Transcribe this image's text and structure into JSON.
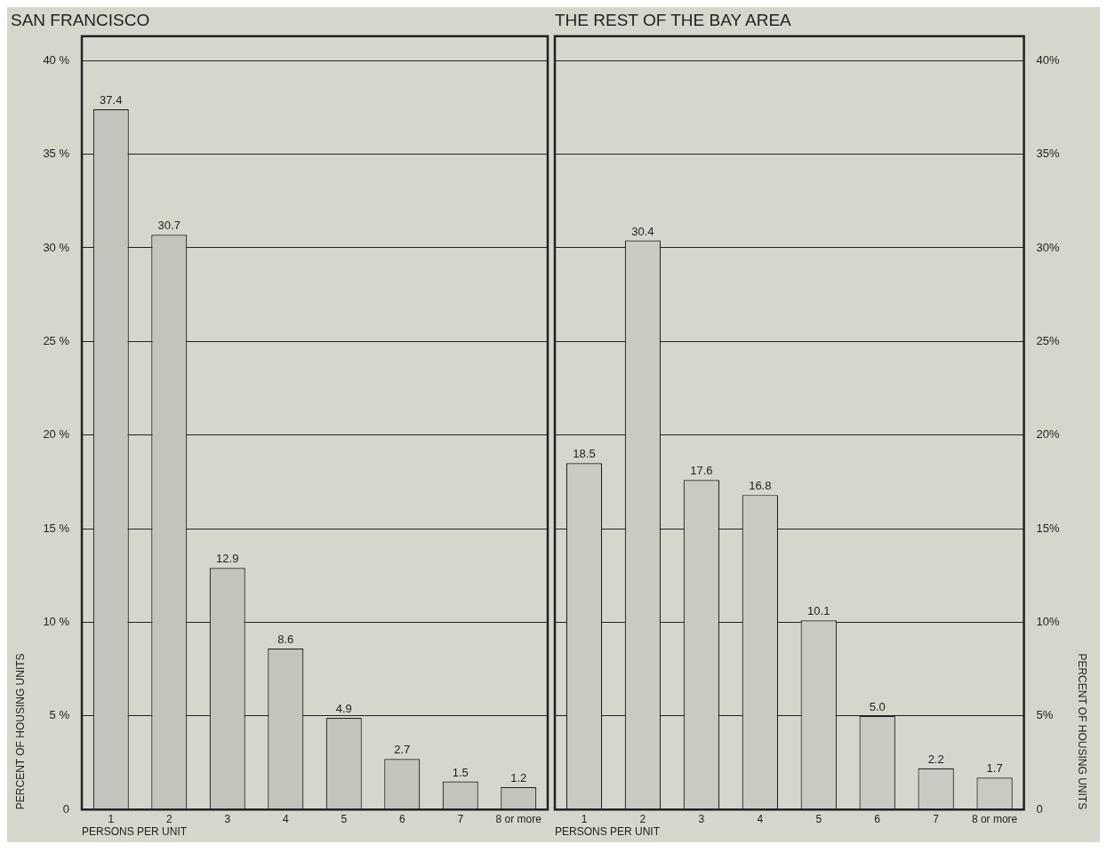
{
  "chart_data": [
    {
      "type": "bar",
      "title": "SAN FRANCISCO",
      "xlabel": "PERSONS PER UNIT",
      "ylabel": "PERCENT OF HOUSING UNITS",
      "categories": [
        "1",
        "2",
        "3",
        "4",
        "5",
        "6",
        "7",
        "8 or more"
      ],
      "series": [
        {
          "color": "#c4c4bc",
          "values": [
            37.4,
            30.7,
            12.9,
            8.6,
            4.9,
            2.7,
            1.5,
            1.2
          ],
          "value_labels": [
            "37.4",
            "30.7",
            "12.9",
            "8.6",
            "4.9",
            "2.7",
            "1.5",
            "1.2"
          ]
        }
      ],
      "ylim": [
        0,
        41.3
      ],
      "yticks": [
        0,
        {
          "value": 5,
          "label": "5 %"
        },
        {
          "value": 10,
          "label": "10 %"
        },
        {
          "value": 15,
          "label": "15 %"
        },
        {
          "value": 20,
          "label": "20 %"
        },
        {
          "value": 25,
          "label": "25 %"
        },
        {
          "value": 30,
          "label": "30 %"
        },
        {
          "value": 35,
          "label": "35 %"
        },
        {
          "value": 40,
          "label": "40 %"
        }
      ],
      "grid": "y",
      "legend": false
    },
    {
      "type": "bar",
      "title": "THE REST OF THE BAY AREA",
      "xlabel": "PERSONS PER UNIT",
      "y2label": "PERCENT OF HOUSING UNITS",
      "categories": [
        "1",
        "2",
        "3",
        "4",
        "5",
        "6",
        "7",
        "8 or more"
      ],
      "series": [
        {
          "color": "#cacac2",
          "axis": "y2",
          "values": [
            18.5,
            30.4,
            17.6,
            16.8,
            10.1,
            5.0,
            2.2,
            1.7
          ],
          "value_labels": [
            "18.5",
            "30.4",
            "17.6",
            "16.8",
            "10.1",
            "5.0",
            "2.2",
            "1.7"
          ]
        }
      ],
      "y2lim": [
        0,
        41.3
      ],
      "y2ticks": [
        0,
        {
          "value": 5,
          "label": "5%"
        },
        {
          "value": 10,
          "label": "10%"
        },
        {
          "value": 15,
          "label": "15%"
        },
        {
          "value": 20,
          "label": "20%"
        },
        {
          "value": 25,
          "label": "25%"
        },
        {
          "value": 30,
          "label": "30%"
        },
        {
          "value": 35,
          "label": "35%"
        },
        {
          "value": 40,
          "label": "40%"
        }
      ],
      "grid": "y",
      "legend": false
    }
  ]
}
